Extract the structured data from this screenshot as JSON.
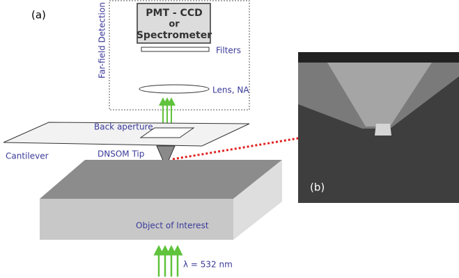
{
  "panel_a": {
    "label": "(a)",
    "detector": [
      "PMT - CCD",
      "or",
      "Spectrometer"
    ],
    "filters": "Filters",
    "lens": "Lens, NA",
    "far_field": "Far-field Detection",
    "back_aperture": "Back aperture",
    "cantilever": "Cantilever",
    "tip": "DNSOM Tip",
    "object": "Object of Interest",
    "wavelength": "λ = 532 nm"
  },
  "panel_b": {
    "label": "(b)"
  }
}
